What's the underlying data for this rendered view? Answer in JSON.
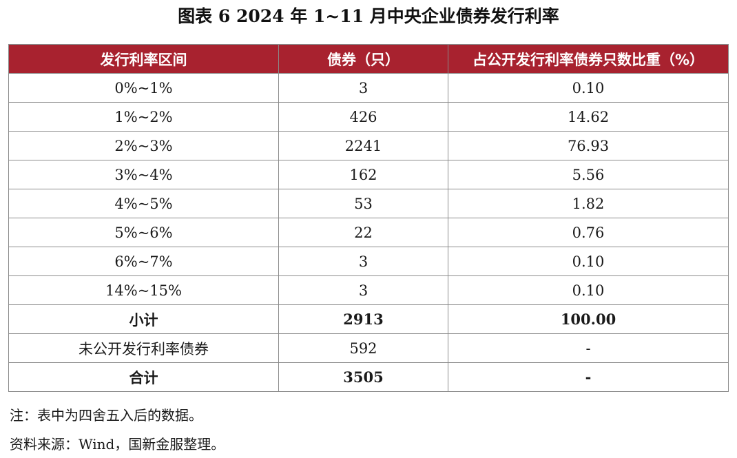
{
  "title": "图表 6  2024 年 1~11 月中央企业债券发行利率",
  "table": {
    "headers": [
      "发行利率区间",
      "债券（只）",
      "占公开发行利率债券只数比重（%）"
    ],
    "rows": [
      {
        "range": "0%~1%",
        "count": "3",
        "share": "0.10"
      },
      {
        "range": "1%~2%",
        "count": "426",
        "share": "14.62"
      },
      {
        "range": "2%~3%",
        "count": "2241",
        "share": "76.93"
      },
      {
        "range": "3%~4%",
        "count": "162",
        "share": "5.56"
      },
      {
        "range": "4%~5%",
        "count": "53",
        "share": "1.82"
      },
      {
        "range": "5%~6%",
        "count": "22",
        "share": "0.76"
      },
      {
        "range": "6%~7%",
        "count": "3",
        "share": "0.10"
      },
      {
        "range": "14%~15%",
        "count": "3",
        "share": "0.10"
      }
    ],
    "subtotal": {
      "label": "小计",
      "count": "2913",
      "share": "100.00"
    },
    "undisclosed": {
      "label": "未公开发行利率债券",
      "count": "592",
      "share": "-"
    },
    "total": {
      "label": "合计",
      "count": "3505",
      "share": "-"
    }
  },
  "notes": {
    "note": "注：表中为四舍五入后的数据。",
    "source": "资料来源：Wind，国新金服整理。"
  },
  "colors": {
    "header_bg": "#a8222f",
    "header_text": "#ffffff",
    "border": "#8a8a8a"
  }
}
